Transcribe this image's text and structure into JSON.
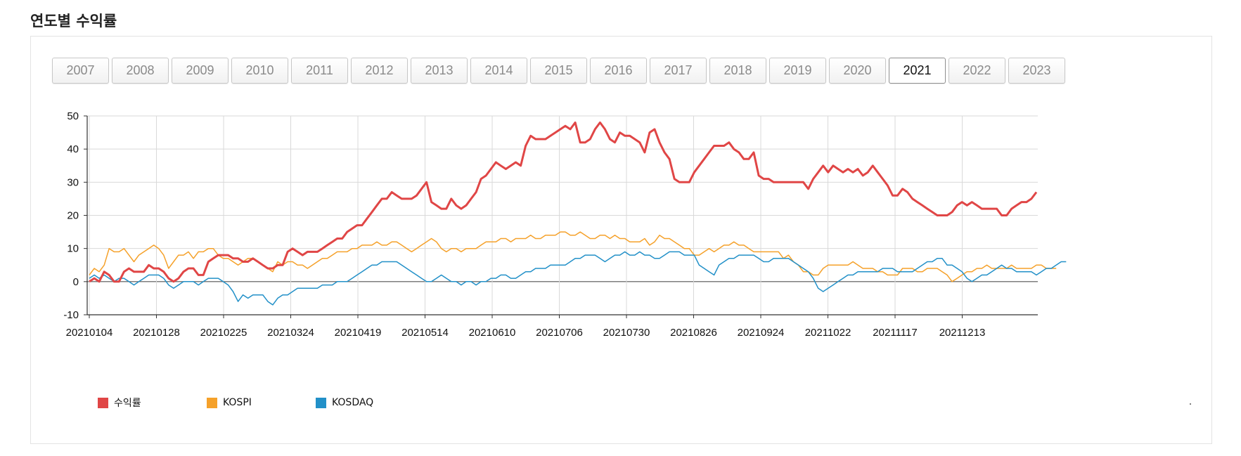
{
  "page": {
    "title": "연도별 수익률"
  },
  "year_tabs": [
    "2007",
    "2008",
    "2009",
    "2010",
    "2011",
    "2012",
    "2013",
    "2014",
    "2015",
    "2016",
    "2017",
    "2018",
    "2019",
    "2020",
    "2021",
    "2022",
    "2023"
  ],
  "active_year": "2021",
  "colors": {
    "수익률": "#e04646",
    "KOSPI": "#f5a12a",
    "KOSDAQ": "#2290c8",
    "grid": "#d9d9d9",
    "axis": "#333333"
  },
  "chart_data": {
    "type": "line",
    "ylim": [
      -10,
      50
    ],
    "yticks": [
      -10,
      0,
      10,
      20,
      30,
      40,
      50
    ],
    "x_tick_labels": [
      "20210104",
      "20210128",
      "20210225",
      "20210324",
      "20210419",
      "20210514",
      "20210610",
      "20210706",
      "20210730",
      "20210826",
      "20210924",
      "20211022",
      "20211117",
      "20211213"
    ],
    "grid": true,
    "legend_position": "bottom-left",
    "series": [
      {
        "name": "수익률",
        "color": "#e04646",
        "values": [
          0,
          1,
          0,
          3,
          2,
          0,
          0,
          3,
          4,
          3,
          3,
          3,
          5,
          4,
          4,
          3,
          1,
          0,
          1,
          3,
          4,
          4,
          2,
          2,
          6,
          7,
          8,
          8,
          8,
          7,
          7,
          6,
          6,
          7,
          6,
          5,
          4,
          4,
          5,
          5,
          9,
          10,
          9,
          8,
          9,
          9,
          9,
          10,
          11,
          12,
          13,
          13,
          15,
          16,
          17,
          17,
          19,
          21,
          23,
          25,
          25,
          27,
          26,
          25,
          25,
          25,
          26,
          28,
          30,
          24,
          23,
          22,
          22,
          25,
          23,
          22,
          23,
          25,
          27,
          31,
          32,
          34,
          36,
          35,
          34,
          35,
          36,
          35,
          41,
          44,
          43,
          43,
          43,
          44,
          45,
          46,
          47,
          46,
          48,
          42,
          42,
          43,
          46,
          48,
          46,
          43,
          42,
          45,
          44,
          44,
          43,
          42,
          39,
          45,
          46,
          42,
          39,
          37,
          31,
          30,
          30,
          30,
          33,
          35,
          37,
          39,
          41,
          41,
          41,
          42,
          40,
          39,
          37,
          37,
          39,
          32,
          31,
          31,
          30,
          30,
          30,
          30,
          30,
          30,
          30,
          28,
          31,
          33,
          35,
          33,
          35,
          34,
          33,
          34,
          33,
          34,
          32,
          33,
          35,
          33,
          31,
          29,
          26,
          26,
          28,
          27,
          25,
          24,
          23,
          22,
          21,
          20,
          20,
          20,
          21,
          23,
          24,
          23,
          24,
          23,
          22,
          22,
          22,
          22,
          20,
          20,
          22,
          23,
          24,
          24,
          25,
          27
        ]
      },
      {
        "name": "KOSPI",
        "color": "#f5a12a",
        "values": [
          2,
          4,
          3,
          5,
          10,
          9,
          9,
          10,
          8,
          6,
          8,
          9,
          10,
          11,
          10,
          8,
          4,
          6,
          8,
          8,
          9,
          7,
          9,
          9,
          10,
          10,
          8,
          7,
          7,
          6,
          5,
          6,
          7,
          7,
          6,
          5,
          4,
          3,
          6,
          5,
          6,
          6,
          5,
          5,
          4,
          5,
          6,
          7,
          7,
          8,
          9,
          9,
          9,
          10,
          10,
          11,
          11,
          11,
          12,
          11,
          11,
          12,
          12,
          11,
          10,
          9,
          10,
          11,
          12,
          13,
          12,
          10,
          9,
          10,
          10,
          9,
          10,
          10,
          10,
          11,
          12,
          12,
          12,
          13,
          13,
          12,
          13,
          13,
          13,
          14,
          13,
          13,
          14,
          14,
          14,
          15,
          15,
          14,
          14,
          15,
          14,
          13,
          13,
          14,
          14,
          13,
          14,
          13,
          13,
          12,
          12,
          12,
          13,
          11,
          12,
          14,
          13,
          13,
          12,
          11,
          10,
          10,
          8,
          8,
          9,
          10,
          9,
          10,
          11,
          11,
          12,
          11,
          11,
          10,
          9,
          9,
          9,
          9,
          9,
          9,
          7,
          8,
          6,
          5,
          3,
          3,
          2,
          2,
          4,
          5,
          5,
          5,
          5,
          5,
          6,
          5,
          4,
          4,
          4,
          3,
          3,
          2,
          2,
          2,
          4,
          4,
          4,
          3,
          3,
          4,
          4,
          4,
          3,
          2,
          0,
          1,
          2,
          3,
          3,
          4,
          4,
          5,
          4,
          4,
          4,
          4,
          5,
          4,
          4,
          4,
          4,
          5,
          5,
          4,
          4,
          4
        ]
      },
      {
        "name": "KOSDAQ",
        "color": "#2290c8",
        "values": [
          1,
          2,
          1,
          2,
          1,
          0,
          1,
          1,
          0,
          -1,
          0,
          1,
          2,
          2,
          2,
          1,
          -1,
          -2,
          -1,
          0,
          0,
          0,
          -1,
          0,
          1,
          1,
          1,
          0,
          -1,
          -3,
          -6,
          -4,
          -5,
          -4,
          -4,
          -4,
          -6,
          -7,
          -5,
          -4,
          -4,
          -3,
          -2,
          -2,
          -2,
          -2,
          -2,
          -1,
          -1,
          -1,
          0,
          0,
          0,
          1,
          2,
          3,
          4,
          5,
          5,
          6,
          6,
          6,
          6,
          5,
          4,
          3,
          2,
          1,
          0,
          0,
          1,
          2,
          1,
          0,
          0,
          -1,
          0,
          0,
          -1,
          0,
          0,
          1,
          1,
          2,
          2,
          1,
          1,
          2,
          3,
          3,
          4,
          4,
          4,
          5,
          5,
          5,
          5,
          6,
          7,
          7,
          8,
          8,
          8,
          7,
          6,
          7,
          8,
          8,
          9,
          8,
          8,
          9,
          8,
          8,
          7,
          7,
          8,
          9,
          9,
          9,
          8,
          8,
          8,
          5,
          4,
          3,
          2,
          5,
          6,
          7,
          7,
          8,
          8,
          8,
          8,
          7,
          6,
          6,
          7,
          7,
          7,
          7,
          6,
          5,
          4,
          3,
          1,
          -2,
          -3,
          -2,
          -1,
          0,
          1,
          2,
          2,
          3,
          3,
          3,
          3,
          3,
          4,
          4,
          4,
          3,
          3,
          3,
          3,
          4,
          5,
          6,
          6,
          7,
          7,
          5,
          5,
          4,
          3,
          1,
          0,
          1,
          2,
          2,
          3,
          4,
          5,
          4,
          4,
          3,
          3,
          3,
          3,
          2,
          3,
          4,
          4,
          5,
          6,
          6
        ]
      }
    ]
  }
}
